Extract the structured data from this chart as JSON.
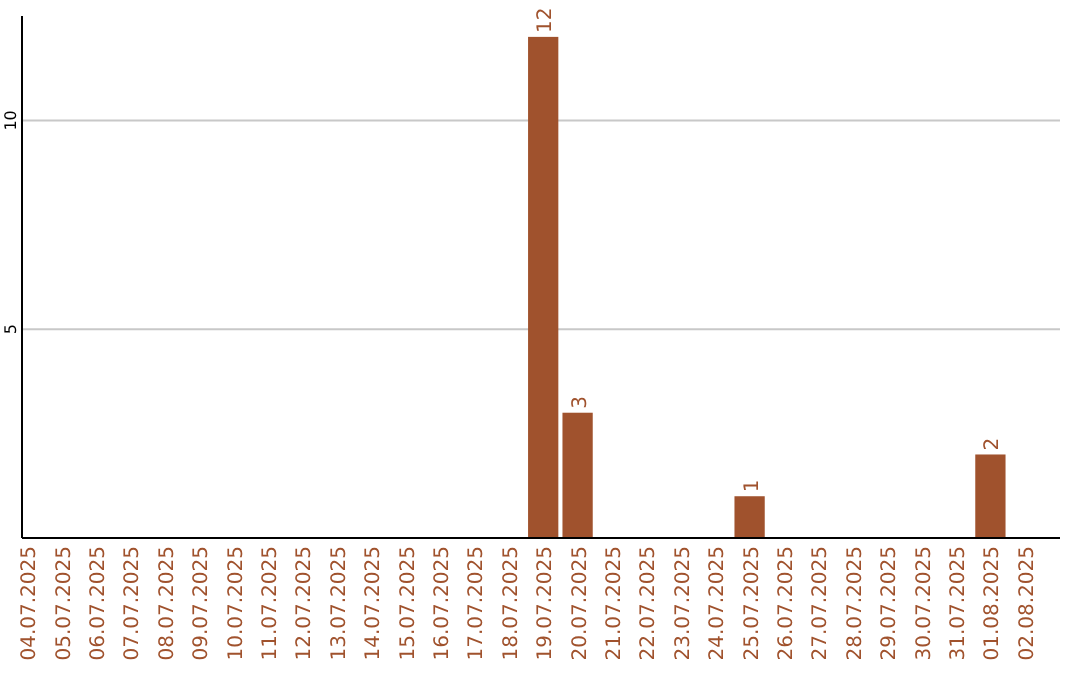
{
  "chart_data": {
    "type": "bar",
    "categories": [
      "04.07.2025",
      "05.07.2025",
      "06.07.2025",
      "07.07.2025",
      "08.07.2025",
      "09.07.2025",
      "10.07.2025",
      "11.07.2025",
      "12.07.2025",
      "13.07.2025",
      "14.07.2025",
      "15.07.2025",
      "16.07.2025",
      "17.07.2025",
      "18.07.2025",
      "19.07.2025",
      "20.07.2025",
      "21.07.2025",
      "22.07.2025",
      "23.07.2025",
      "24.07.2025",
      "25.07.2025",
      "26.07.2025",
      "27.07.2025",
      "28.07.2025",
      "29.07.2025",
      "30.07.2025",
      "31.07.2025",
      "01.08.2025",
      "02.08.2025"
    ],
    "values": [
      0,
      0,
      0,
      0,
      0,
      0,
      0,
      0,
      0,
      0,
      0,
      0,
      0,
      0,
      0,
      12,
      3,
      0,
      0,
      0,
      0,
      1,
      0,
      0,
      0,
      0,
      0,
      0,
      2,
      0
    ],
    "value_labels": [
      null,
      null,
      null,
      null,
      null,
      null,
      null,
      null,
      null,
      null,
      null,
      null,
      null,
      null,
      null,
      "12",
      "3",
      null,
      null,
      null,
      null,
      "1",
      null,
      null,
      null,
      null,
      null,
      null,
      "2",
      null
    ],
    "color": "#a0522d",
    "ylim": [
      0,
      12.5
    ],
    "yticks": [
      5,
      10
    ],
    "grid": "y"
  }
}
